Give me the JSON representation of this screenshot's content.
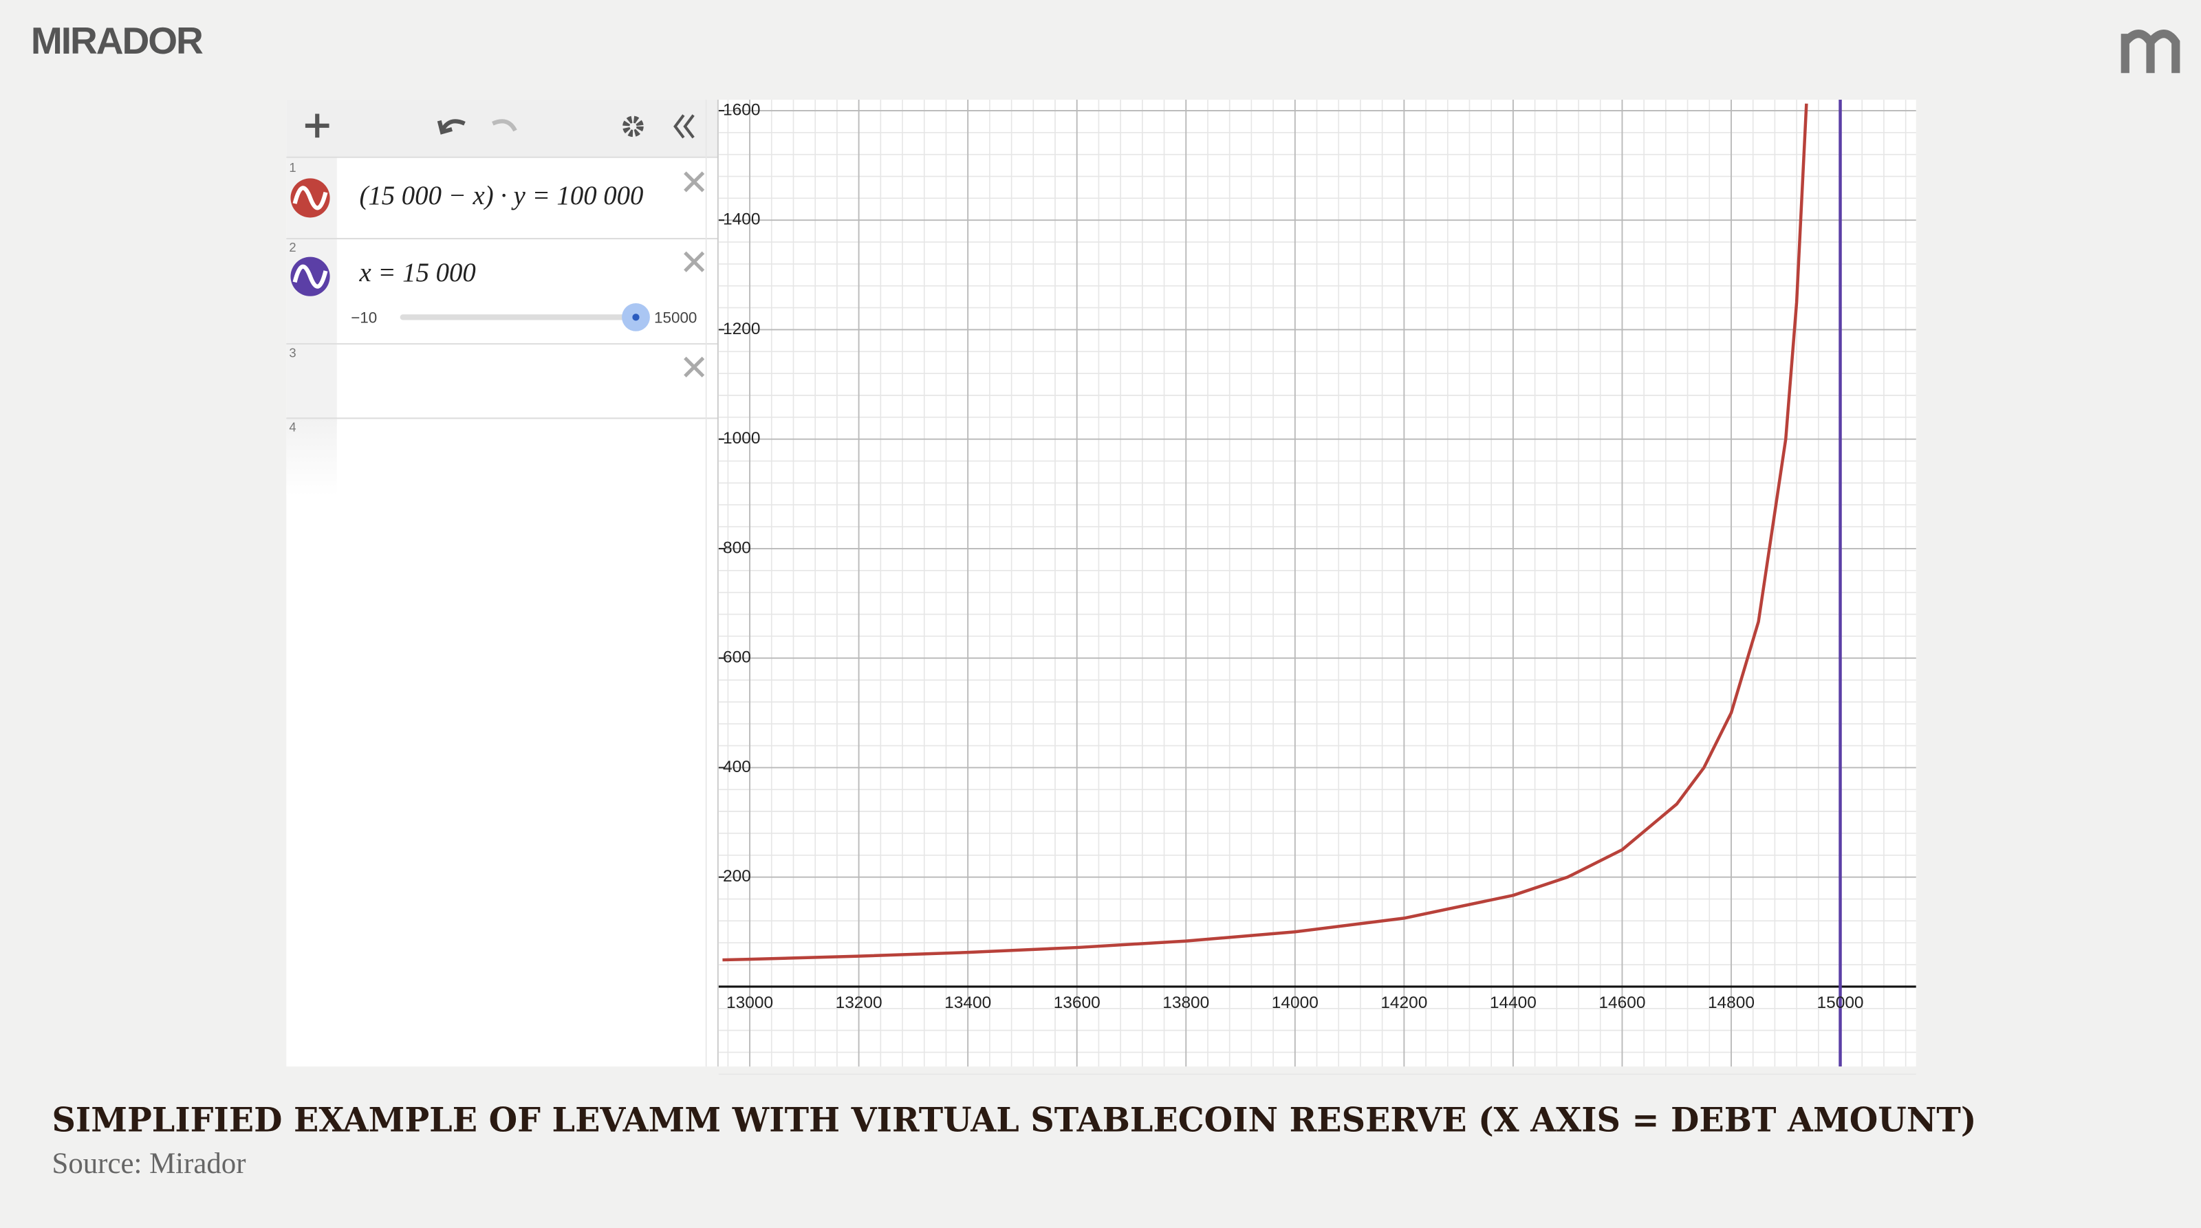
{
  "brand": "MIRADOR",
  "sidebar": {
    "expressions": [
      {
        "number": "1",
        "latex": "(15 000 − x) · y = 100 000"
      },
      {
        "number": "2",
        "latex": "x = 15 000",
        "slider": {
          "min": "−10",
          "max": "15000"
        }
      },
      {
        "number": "3"
      },
      {
        "number": "4"
      }
    ]
  },
  "chart_data": {
    "type": "line",
    "series": [
      {
        "color": "#b8413a",
        "x": [
          12950,
          13000,
          13200,
          13400,
          13600,
          13800,
          14000,
          14200,
          14400,
          14500,
          14600,
          14700,
          14750,
          14800,
          14850,
          14900,
          14920,
          14938
        ],
        "values": [
          48.8,
          50,
          55.6,
          62.5,
          71.4,
          83.3,
          100,
          125,
          166.7,
          200,
          250,
          333.3,
          400,
          500,
          666.7,
          1000,
          1250,
          1612.9
        ]
      }
    ],
    "vertical_line": {
      "x": 15000,
      "color": "#5b3fa6"
    },
    "xlim": [
      12943,
      15139
    ],
    "ylim": [
      -146,
      1620
    ],
    "xticks": [
      13000,
      13200,
      13400,
      13600,
      13800,
      14000,
      14200,
      14400,
      14600,
      14800,
      15000
    ],
    "yticks": [
      200,
      400,
      600,
      800,
      1000,
      1200,
      1400,
      1600
    ],
    "grid": true,
    "minor_grid": 5
  },
  "caption": {
    "title": "SIMPLIFIED EXAMPLE OF LEVAMM WITH VIRTUAL STABLECOIN RESERVE (X AXIS = DEBT AMOUNT)",
    "source": "Source: Mirador"
  }
}
